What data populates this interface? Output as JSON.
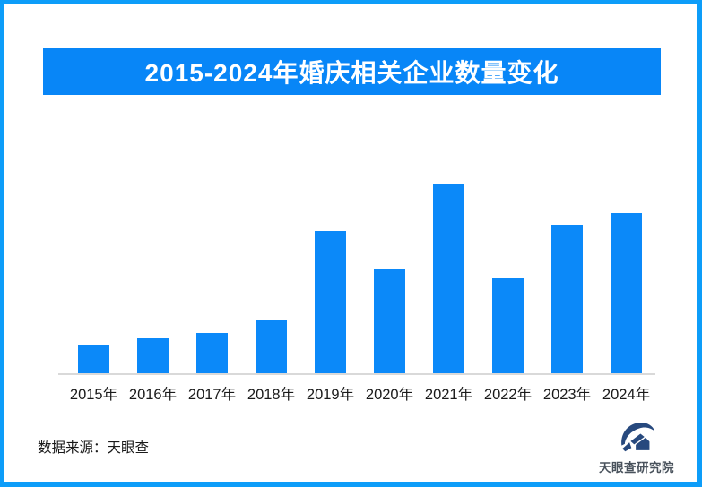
{
  "page": {
    "background": "#FFFFFF",
    "border_color": "#0D9DF9"
  },
  "header": {
    "title": "2015-2024年婚庆相关企业数量变化",
    "background": "#0886F7",
    "text_color": "#FFFFFF"
  },
  "chart_data": {
    "type": "bar",
    "title": "2015-2024年婚庆相关企业数量变化",
    "categories": [
      "2015年",
      "2016年",
      "2017年",
      "2018年",
      "2019年",
      "2020年",
      "2021年",
      "2022年",
      "2023年",
      "2024年"
    ],
    "values": [
      15,
      18.5,
      21.5,
      28,
      75.5,
      55,
      100,
      50,
      78.5,
      85
    ],
    "value_note": "relative index estimated from bar heights; no y-axis labels shown; 2021 peak = 100",
    "xlabel": "",
    "ylabel": "",
    "ylim": [
      0,
      100
    ],
    "grid": false,
    "legend": false,
    "bar_color": "#0B89F9",
    "axis_line_color": "#D9D9D9",
    "tick_label_color": "#1A1A1A"
  },
  "footer": {
    "source_label": "数据来源：天眼查"
  },
  "logo": {
    "icon": "tianyancha-eye-logo",
    "name": "天眼查研究院",
    "icon_color": "#27497E",
    "text_color": "#49525C"
  }
}
